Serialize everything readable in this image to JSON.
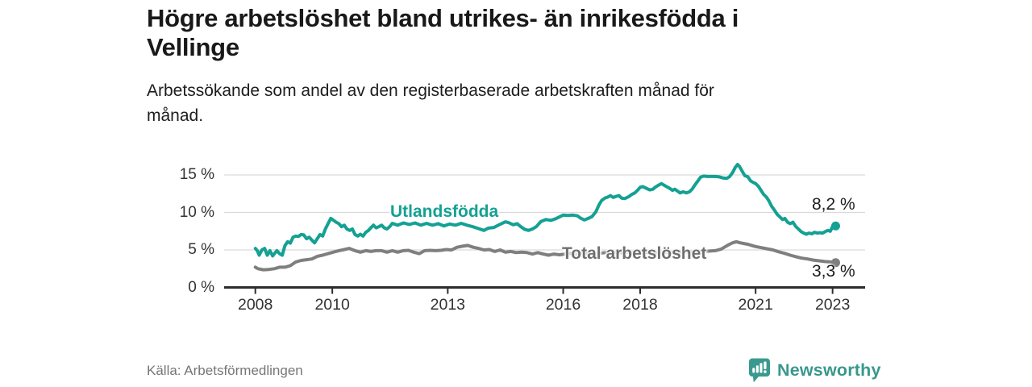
{
  "header": {
    "title_lines": [
      "Högre arbetslöshet bland utrikes- än inrikesfödda i",
      "Vellinge"
    ],
    "subtitle_lines": [
      "Arbetssökande som andel av den registerbaserade arbetskraften månad för",
      "månad."
    ]
  },
  "footer": {
    "source": "Källa: Arbetsförmedlingen",
    "brand": "Newsworthy"
  },
  "colors": {
    "accent_teal": "#14a193",
    "series_gray": "#7f7f7f",
    "axis": "#2d2d2d",
    "gridline": "#d9d9d9",
    "logo_teal": "#3a998f"
  },
  "chart_data": {
    "type": "line",
    "title": "Högre arbetslöshet bland utrikes- än inrikesfödda i Vellinge",
    "subtitle": "Arbetssökande som andel av den registerbaserade arbetskraften månad för månad.",
    "source": "Källa: Arbetsförmedlingen",
    "unit": "% av registerbaserad arbetskraft",
    "grid": true,
    "legend_position": "inline-labels",
    "x_axis": {
      "min": 2007.2,
      "max": 2023.85,
      "ticks": [
        2008,
        2010,
        2013,
        2016,
        2018,
        2021,
        2023
      ]
    },
    "y_axis": {
      "min": 0,
      "max": 17,
      "ticks": [
        {
          "value": 0,
          "label": "0 %"
        },
        {
          "value": 5,
          "label": "5 %"
        },
        {
          "value": 10,
          "label": "10 %"
        },
        {
          "value": 15,
          "label": "15 %"
        }
      ]
    },
    "series": [
      {
        "name": "Utlandsfödda",
        "color": "#14a193",
        "end_label": "8,2 %",
        "end_value": 8.2,
        "points": [
          [
            2008.0,
            5.2
          ],
          [
            2008.05,
            4.9
          ],
          [
            2008.1,
            4.3
          ],
          [
            2008.17,
            5.0
          ],
          [
            2008.24,
            5.2
          ],
          [
            2008.31,
            4.3
          ],
          [
            2008.38,
            4.9
          ],
          [
            2008.45,
            4.2
          ],
          [
            2008.56,
            4.9
          ],
          [
            2008.63,
            4.5
          ],
          [
            2008.7,
            4.3
          ],
          [
            2008.77,
            5.6
          ],
          [
            2008.84,
            6.1
          ],
          [
            2008.91,
            5.9
          ],
          [
            2008.98,
            6.7
          ],
          [
            2009.05,
            6.85
          ],
          [
            2009.12,
            6.8
          ],
          [
            2009.19,
            7.05
          ],
          [
            2009.26,
            7.0
          ],
          [
            2009.33,
            6.5
          ],
          [
            2009.4,
            6.7
          ],
          [
            2009.47,
            6.3
          ],
          [
            2009.54,
            5.95
          ],
          [
            2009.61,
            6.5
          ],
          [
            2009.68,
            7.05
          ],
          [
            2009.75,
            6.85
          ],
          [
            2009.82,
            7.8
          ],
          [
            2009.89,
            8.5
          ],
          [
            2009.96,
            9.2
          ],
          [
            2010.02,
            9.0
          ],
          [
            2010.1,
            8.7
          ],
          [
            2010.17,
            8.5
          ],
          [
            2010.24,
            8.1
          ],
          [
            2010.31,
            8.3
          ],
          [
            2010.38,
            7.8
          ],
          [
            2010.45,
            7.6
          ],
          [
            2010.52,
            7.8
          ],
          [
            2010.59,
            7.05
          ],
          [
            2010.66,
            6.85
          ],
          [
            2010.73,
            7.1
          ],
          [
            2010.8,
            6.85
          ],
          [
            2010.87,
            7.35
          ],
          [
            2010.94,
            7.6
          ],
          [
            2011.0,
            7.95
          ],
          [
            2011.07,
            8.3
          ],
          [
            2011.14,
            7.95
          ],
          [
            2011.21,
            8.1
          ],
          [
            2011.28,
            8.3
          ],
          [
            2011.35,
            7.95
          ],
          [
            2011.42,
            7.8
          ],
          [
            2011.49,
            8.1
          ],
          [
            2011.56,
            8.55
          ],
          [
            2011.7,
            8.3
          ],
          [
            2011.85,
            8.6
          ],
          [
            2012.0,
            8.4
          ],
          [
            2012.15,
            8.6
          ],
          [
            2012.3,
            8.3
          ],
          [
            2012.45,
            8.55
          ],
          [
            2012.6,
            8.3
          ],
          [
            2012.75,
            8.5
          ],
          [
            2012.9,
            8.2
          ],
          [
            2013.05,
            8.45
          ],
          [
            2013.2,
            8.3
          ],
          [
            2013.35,
            8.55
          ],
          [
            2013.5,
            8.3
          ],
          [
            2013.65,
            8.1
          ],
          [
            2013.8,
            7.85
          ],
          [
            2013.94,
            7.6
          ],
          [
            2014.05,
            7.9
          ],
          [
            2014.2,
            8.0
          ],
          [
            2014.35,
            8.4
          ],
          [
            2014.5,
            8.75
          ],
          [
            2014.6,
            8.6
          ],
          [
            2014.7,
            8.35
          ],
          [
            2014.8,
            8.5
          ],
          [
            2014.9,
            8.1
          ],
          [
            2015.0,
            7.75
          ],
          [
            2015.1,
            7.6
          ],
          [
            2015.2,
            7.8
          ],
          [
            2015.3,
            8.1
          ],
          [
            2015.42,
            8.8
          ],
          [
            2015.55,
            9.05
          ],
          [
            2015.68,
            8.95
          ],
          [
            2015.8,
            9.15
          ],
          [
            2015.9,
            9.4
          ],
          [
            2016.0,
            9.65
          ],
          [
            2016.12,
            9.6
          ],
          [
            2016.25,
            9.65
          ],
          [
            2016.37,
            9.55
          ],
          [
            2016.45,
            9.25
          ],
          [
            2016.55,
            9.0
          ],
          [
            2016.65,
            9.2
          ],
          [
            2016.75,
            9.45
          ],
          [
            2016.85,
            10.1
          ],
          [
            2016.93,
            11.0
          ],
          [
            2017.0,
            11.6
          ],
          [
            2017.08,
            11.9
          ],
          [
            2017.16,
            12.05
          ],
          [
            2017.23,
            12.25
          ],
          [
            2017.3,
            12.0
          ],
          [
            2017.38,
            12.15
          ],
          [
            2017.45,
            12.25
          ],
          [
            2017.52,
            11.9
          ],
          [
            2017.6,
            11.85
          ],
          [
            2017.7,
            12.1
          ],
          [
            2017.78,
            12.4
          ],
          [
            2017.86,
            12.6
          ],
          [
            2017.93,
            12.95
          ],
          [
            2018.0,
            13.35
          ],
          [
            2018.07,
            13.45
          ],
          [
            2018.15,
            13.25
          ],
          [
            2018.25,
            13.0
          ],
          [
            2018.33,
            13.1
          ],
          [
            2018.4,
            13.4
          ],
          [
            2018.48,
            13.65
          ],
          [
            2018.55,
            13.85
          ],
          [
            2018.62,
            13.65
          ],
          [
            2018.7,
            13.4
          ],
          [
            2018.77,
            13.2
          ],
          [
            2018.84,
            12.95
          ],
          [
            2018.9,
            13.1
          ],
          [
            2018.97,
            12.85
          ],
          [
            2019.04,
            12.6
          ],
          [
            2019.12,
            12.75
          ],
          [
            2019.2,
            12.6
          ],
          [
            2019.28,
            12.75
          ],
          [
            2019.35,
            13.1
          ],
          [
            2019.42,
            13.65
          ],
          [
            2019.5,
            14.2
          ],
          [
            2019.57,
            14.7
          ],
          [
            2019.65,
            14.85
          ],
          [
            2019.75,
            14.8
          ],
          [
            2019.85,
            14.8
          ],
          [
            2019.95,
            14.8
          ],
          [
            2020.05,
            14.75
          ],
          [
            2020.15,
            14.6
          ],
          [
            2020.25,
            14.55
          ],
          [
            2020.32,
            14.75
          ],
          [
            2020.4,
            15.3
          ],
          [
            2020.47,
            16.0
          ],
          [
            2020.53,
            16.4
          ],
          [
            2020.58,
            16.15
          ],
          [
            2020.65,
            15.5
          ],
          [
            2020.72,
            14.9
          ],
          [
            2020.8,
            14.75
          ],
          [
            2020.87,
            14.2
          ],
          [
            2020.94,
            14.0
          ],
          [
            2021.0,
            13.85
          ],
          [
            2021.07,
            13.5
          ],
          [
            2021.14,
            12.95
          ],
          [
            2021.21,
            12.4
          ],
          [
            2021.28,
            12.05
          ],
          [
            2021.35,
            11.5
          ],
          [
            2021.42,
            10.8
          ],
          [
            2021.49,
            10.3
          ],
          [
            2021.56,
            9.75
          ],
          [
            2021.63,
            9.4
          ],
          [
            2021.7,
            9.05
          ],
          [
            2021.76,
            9.2
          ],
          [
            2021.83,
            8.7
          ],
          [
            2021.9,
            8.5
          ],
          [
            2021.97,
            8.7
          ],
          [
            2022.04,
            8.15
          ],
          [
            2022.11,
            7.8
          ],
          [
            2022.18,
            7.45
          ],
          [
            2022.25,
            7.25
          ],
          [
            2022.32,
            7.1
          ],
          [
            2022.39,
            7.25
          ],
          [
            2022.46,
            7.15
          ],
          [
            2022.53,
            7.35
          ],
          [
            2022.6,
            7.25
          ],
          [
            2022.67,
            7.3
          ],
          [
            2022.74,
            7.25
          ],
          [
            2022.81,
            7.45
          ],
          [
            2022.88,
            7.6
          ],
          [
            2022.94,
            7.5
          ],
          [
            2023.0,
            8.1
          ],
          [
            2023.04,
            8.0
          ],
          [
            2023.08,
            8.2
          ]
        ]
      },
      {
        "name": "Total arbetslöshet",
        "color": "#7f7f7f",
        "end_label": "3,3 %",
        "end_value": 3.3,
        "points": [
          [
            2008.0,
            2.7
          ],
          [
            2008.07,
            2.5
          ],
          [
            2008.21,
            2.35
          ],
          [
            2008.35,
            2.4
          ],
          [
            2008.49,
            2.5
          ],
          [
            2008.63,
            2.7
          ],
          [
            2008.77,
            2.7
          ],
          [
            2008.91,
            2.9
          ],
          [
            2009.05,
            3.4
          ],
          [
            2009.19,
            3.6
          ],
          [
            2009.33,
            3.7
          ],
          [
            2009.47,
            3.8
          ],
          [
            2009.61,
            4.15
          ],
          [
            2009.75,
            4.3
          ],
          [
            2009.89,
            4.5
          ],
          [
            2010.02,
            4.7
          ],
          [
            2010.17,
            4.9
          ],
          [
            2010.31,
            5.05
          ],
          [
            2010.44,
            5.2
          ],
          [
            2010.59,
            4.9
          ],
          [
            2010.73,
            4.7
          ],
          [
            2010.87,
            4.9
          ],
          [
            2011.0,
            4.8
          ],
          [
            2011.14,
            4.9
          ],
          [
            2011.28,
            4.9
          ],
          [
            2011.42,
            4.7
          ],
          [
            2011.56,
            4.9
          ],
          [
            2011.7,
            4.7
          ],
          [
            2011.84,
            4.9
          ],
          [
            2011.98,
            4.95
          ],
          [
            2012.12,
            4.7
          ],
          [
            2012.26,
            4.5
          ],
          [
            2012.4,
            4.9
          ],
          [
            2012.54,
            4.95
          ],
          [
            2012.68,
            4.9
          ],
          [
            2012.82,
            4.95
          ],
          [
            2012.96,
            5.05
          ],
          [
            2013.1,
            5.0
          ],
          [
            2013.24,
            5.35
          ],
          [
            2013.38,
            5.5
          ],
          [
            2013.52,
            5.6
          ],
          [
            2013.66,
            5.35
          ],
          [
            2013.8,
            5.2
          ],
          [
            2013.94,
            5.0
          ],
          [
            2014.08,
            5.05
          ],
          [
            2014.22,
            4.8
          ],
          [
            2014.36,
            5.0
          ],
          [
            2014.5,
            4.7
          ],
          [
            2014.64,
            4.8
          ],
          [
            2014.78,
            4.65
          ],
          [
            2014.92,
            4.7
          ],
          [
            2015.06,
            4.65
          ],
          [
            2015.2,
            4.45
          ],
          [
            2015.34,
            4.65
          ],
          [
            2015.48,
            4.45
          ],
          [
            2015.62,
            4.3
          ],
          [
            2015.76,
            4.45
          ],
          [
            2015.9,
            4.35
          ],
          [
            2016.05,
            4.45
          ],
          [
            2016.2,
            4.55
          ],
          [
            2016.35,
            4.45
          ],
          [
            2016.5,
            4.6
          ],
          [
            2016.65,
            4.5
          ],
          [
            2016.8,
            4.6
          ],
          [
            2016.95,
            4.55
          ],
          [
            2017.1,
            4.65
          ],
          [
            2017.25,
            4.6
          ],
          [
            2017.4,
            4.7
          ],
          [
            2017.55,
            4.6
          ],
          [
            2017.7,
            4.7
          ],
          [
            2017.85,
            4.65
          ],
          [
            2018.0,
            4.7
          ],
          [
            2018.15,
            4.65
          ],
          [
            2018.3,
            4.7
          ],
          [
            2018.45,
            4.6
          ],
          [
            2018.6,
            4.7
          ],
          [
            2018.75,
            4.65
          ],
          [
            2018.9,
            4.7
          ],
          [
            2019.05,
            4.7
          ],
          [
            2019.2,
            4.75
          ],
          [
            2019.35,
            4.7
          ],
          [
            2019.5,
            4.75
          ],
          [
            2019.65,
            4.8
          ],
          [
            2019.8,
            4.85
          ],
          [
            2019.95,
            4.9
          ],
          [
            2020.1,
            5.1
          ],
          [
            2020.2,
            5.4
          ],
          [
            2020.3,
            5.7
          ],
          [
            2020.4,
            5.95
          ],
          [
            2020.5,
            6.1
          ],
          [
            2020.6,
            5.95
          ],
          [
            2020.7,
            5.85
          ],
          [
            2020.8,
            5.75
          ],
          [
            2020.9,
            5.6
          ],
          [
            2021.0,
            5.45
          ],
          [
            2021.15,
            5.3
          ],
          [
            2021.3,
            5.15
          ],
          [
            2021.45,
            5.0
          ],
          [
            2021.6,
            4.75
          ],
          [
            2021.75,
            4.55
          ],
          [
            2021.9,
            4.3
          ],
          [
            2022.05,
            4.1
          ],
          [
            2022.2,
            3.9
          ],
          [
            2022.35,
            3.8
          ],
          [
            2022.5,
            3.65
          ],
          [
            2022.65,
            3.55
          ],
          [
            2022.8,
            3.45
          ],
          [
            2022.95,
            3.4
          ],
          [
            2023.08,
            3.3
          ]
        ]
      }
    ]
  }
}
